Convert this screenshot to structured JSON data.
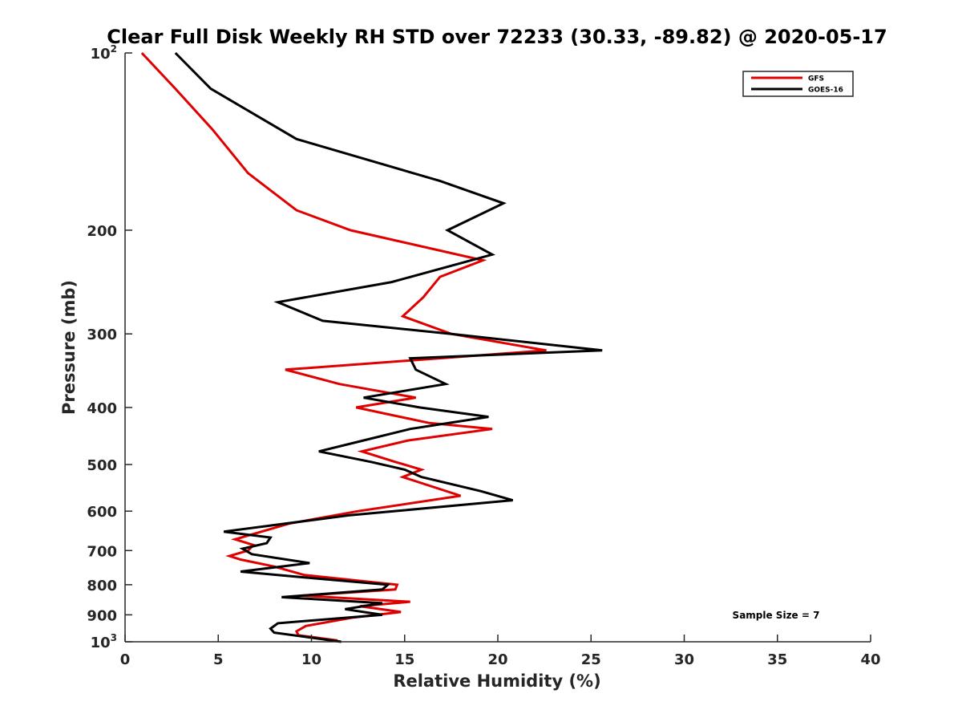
{
  "chart_data": {
    "type": "line",
    "title": "Clear Full Disk Weekly RH STD over 72233 (30.33, -89.82) @ 2020-05-17",
    "xlabel": "Relative Humidity (%)",
    "ylabel": "Pressure (mb)",
    "xlim": [
      0,
      40
    ],
    "ylim": [
      100,
      1000
    ],
    "yscale": "log",
    "y_reversed": true,
    "grid": false,
    "legend_position": "top-right",
    "x_ticks": [
      "0",
      "5",
      "10",
      "15",
      "20",
      "25",
      "30",
      "35",
      "40"
    ],
    "y_ticks": [
      {
        "value": 100,
        "base": "10",
        "exp": "2"
      },
      {
        "value": 200,
        "label": "200"
      },
      {
        "value": 300,
        "label": "300"
      },
      {
        "value": 400,
        "label": "400"
      },
      {
        "value": 500,
        "label": "500"
      },
      {
        "value": 600,
        "label": "600"
      },
      {
        "value": 700,
        "label": "700"
      },
      {
        "value": 800,
        "label": "800"
      },
      {
        "value": 900,
        "label": "900"
      },
      {
        "value": 1000,
        "base": "10",
        "exp": "3"
      }
    ],
    "annotation": "Sample Size = 7",
    "series": [
      {
        "name": "GFS",
        "color": "#e00000",
        "points": [
          [
            0.9,
            100
          ],
          [
            2.7,
            115
          ],
          [
            4.7,
            135
          ],
          [
            6.6,
            160
          ],
          [
            9.2,
            185
          ],
          [
            12.1,
            200
          ],
          [
            19.2,
            225
          ],
          [
            16.9,
            240
          ],
          [
            16.0,
            260
          ],
          [
            14.9,
            280
          ],
          [
            17.5,
            300
          ],
          [
            22.6,
            320
          ],
          [
            8.6,
            345
          ],
          [
            11.5,
            365
          ],
          [
            15.6,
            385
          ],
          [
            12.4,
            400
          ],
          [
            16.3,
            425
          ],
          [
            19.7,
            435
          ],
          [
            15.2,
            455
          ],
          [
            12.7,
            475
          ],
          [
            14.5,
            495
          ],
          [
            15.9,
            510
          ],
          [
            14.9,
            525
          ],
          [
            18.0,
            565
          ],
          [
            12.5,
            600
          ],
          [
            8.8,
            630
          ],
          [
            5.9,
            670
          ],
          [
            6.9,
            685
          ],
          [
            6.6,
            700
          ],
          [
            5.6,
            715
          ],
          [
            6.2,
            725
          ],
          [
            8.0,
            745
          ],
          [
            9.6,
            770
          ],
          [
            14.6,
            800
          ],
          [
            14.5,
            815
          ],
          [
            9.5,
            835
          ],
          [
            15.3,
            855
          ],
          [
            12.6,
            870
          ],
          [
            14.8,
            890
          ],
          [
            12.2,
            910
          ],
          [
            9.7,
            940
          ],
          [
            9.2,
            960
          ],
          [
            9.3,
            975
          ],
          [
            11.4,
            995
          ]
        ]
      },
      {
        "name": "GOES-16",
        "color": "#000000",
        "points": [
          [
            2.7,
            100
          ],
          [
            4.6,
            115
          ],
          [
            9.2,
            140
          ],
          [
            16.9,
            165
          ],
          [
            20.3,
            180
          ],
          [
            17.3,
            200
          ],
          [
            19.7,
            220
          ],
          [
            14.3,
            245
          ],
          [
            8.2,
            265
          ],
          [
            10.6,
            285
          ],
          [
            17.5,
            300
          ],
          [
            25.6,
            320
          ],
          [
            15.3,
            330
          ],
          [
            15.6,
            345
          ],
          [
            17.2,
            365
          ],
          [
            12.8,
            385
          ],
          [
            15.8,
            400
          ],
          [
            19.5,
            415
          ],
          [
            15.3,
            435
          ],
          [
            12.8,
            455
          ],
          [
            10.4,
            475
          ],
          [
            13.2,
            495
          ],
          [
            15.0,
            510
          ],
          [
            15.9,
            525
          ],
          [
            19.1,
            555
          ],
          [
            20.8,
            575
          ],
          [
            12.0,
            610
          ],
          [
            5.3,
            650
          ],
          [
            7.8,
            665
          ],
          [
            7.6,
            680
          ],
          [
            6.3,
            695
          ],
          [
            6.8,
            710
          ],
          [
            9.9,
            735
          ],
          [
            6.2,
            760
          ],
          [
            10.1,
            780
          ],
          [
            14.1,
            800
          ],
          [
            13.8,
            815
          ],
          [
            8.4,
            840
          ],
          [
            13.8,
            860
          ],
          [
            11.8,
            880
          ],
          [
            13.8,
            900
          ],
          [
            8.2,
            930
          ],
          [
            7.8,
            950
          ],
          [
            8.0,
            965
          ],
          [
            11.6,
            1000
          ]
        ]
      }
    ]
  }
}
